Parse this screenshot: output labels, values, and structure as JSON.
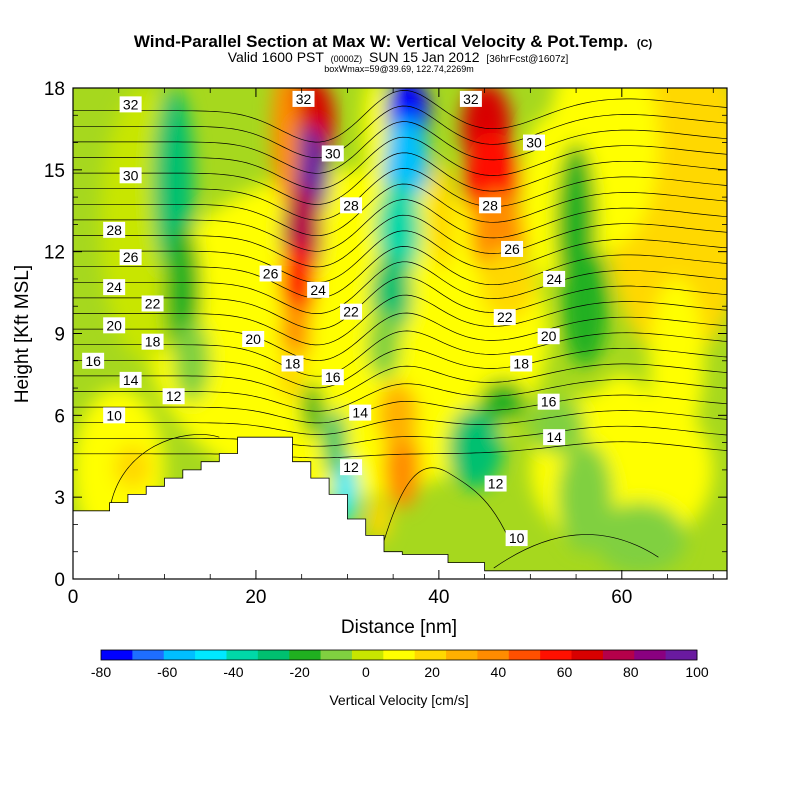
{
  "title": {
    "main": "Wind-Parallel Section at Max W: Vertical Velocity & Pot.Temp.",
    "main_suffix": "(C)",
    "line2_a": "Valid 1600 PST",
    "line2_b": "(0000Z)",
    "line2_c": "SUN 15 Jan 2012",
    "line2_d": "[36hrFcst@1607z]",
    "line3": "boxWmax=59@39.69, 122.74,2269m"
  },
  "colorbar": {
    "label": "Vertical Velocity [cm/s]",
    "ticks": [
      "-80",
      "-60",
      "-40",
      "-20",
      "0",
      "20",
      "40",
      "60",
      "80",
      "100"
    ],
    "tick_values": [
      -80,
      -60,
      -40,
      -20,
      0,
      20,
      40,
      60,
      80,
      100
    ],
    "range": [
      -80,
      100
    ],
    "colors": [
      "#0000ff",
      "#1e6eff",
      "#00bfff",
      "#00e8ff",
      "#00d8a8",
      "#00c070",
      "#20b020",
      "#80d040",
      "#c8e600",
      "#ffff00",
      "#ffd800",
      "#ffb000",
      "#ff8c00",
      "#ff5000",
      "#ff1000",
      "#d80000",
      "#b4004a",
      "#8a0080",
      "#6a1aa0"
    ]
  },
  "chart_data": {
    "type": "heatmap",
    "title": "Wind-Parallel Section at Max W: Vertical Velocity & Pot.Temp.",
    "xlabel": "Distance [nm]",
    "ylabel": "Height [Kft MSL]",
    "xlim": [
      0,
      71.5
    ],
    "ylim": [
      0,
      18
    ],
    "xticks": [
      0,
      20,
      40,
      60
    ],
    "yticks": [
      0,
      3,
      6,
      9,
      12,
      15,
      18
    ],
    "colorbar_label": "Vertical Velocity [cm/s]",
    "terrain_profile": [
      [
        0,
        2.5
      ],
      [
        4,
        2.5
      ],
      [
        4,
        2.8
      ],
      [
        6,
        2.8
      ],
      [
        6,
        3.1
      ],
      [
        8,
        3.1
      ],
      [
        8,
        3.4
      ],
      [
        10,
        3.4
      ],
      [
        10,
        3.7
      ],
      [
        12,
        3.7
      ],
      [
        12,
        4.0
      ],
      [
        14,
        4.0
      ],
      [
        14,
        4.3
      ],
      [
        16,
        4.3
      ],
      [
        16,
        4.6
      ],
      [
        18,
        4.6
      ],
      [
        18,
        5.2
      ],
      [
        24,
        5.2
      ],
      [
        24,
        4.3
      ],
      [
        26,
        4.3
      ],
      [
        26,
        3.7
      ],
      [
        28,
        3.7
      ],
      [
        28,
        3.1
      ],
      [
        30,
        3.1
      ],
      [
        30,
        2.2
      ],
      [
        32,
        2.2
      ],
      [
        32,
        1.6
      ],
      [
        34,
        1.6
      ],
      [
        34,
        1.0
      ],
      [
        36,
        1.0
      ],
      [
        36,
        0.9
      ],
      [
        41,
        0.9
      ],
      [
        41,
        0.6
      ],
      [
        45,
        0.6
      ],
      [
        45,
        0.3
      ],
      [
        71.5,
        0.3
      ]
    ],
    "vertical_velocity_features": [
      {
        "kind": "updraft",
        "x_center": 25.0,
        "y_center": 13.5,
        "max_cm_s": 100
      },
      {
        "kind": "downdraft",
        "x_center": 36.5,
        "y_center": 16.0,
        "min_cm_s": -80
      },
      {
        "kind": "updraft",
        "x_center": 45.5,
        "y_center": 15.0,
        "max_cm_s": 70
      },
      {
        "kind": "updraft",
        "x_center": 36.0,
        "y_center": 4.0,
        "max_cm_s": 40
      },
      {
        "kind": "downdraft",
        "x_center": 30.0,
        "y_center": 3.5,
        "min_cm_s": -40
      },
      {
        "kind": "downdraft",
        "x_center": 12.0,
        "y_center": 12.0,
        "min_cm_s": -25
      },
      {
        "kind": "updraft",
        "x_center": 68.0,
        "y_center": 15.0,
        "max_cm_s": 20
      }
    ],
    "theta_labels": [
      {
        "text": "32",
        "x": 6.3,
        "y": 17.4
      },
      {
        "text": "30",
        "x": 6.3,
        "y": 14.8
      },
      {
        "text": "28",
        "x": 4.5,
        "y": 12.8
      },
      {
        "text": "26",
        "x": 6.3,
        "y": 11.8
      },
      {
        "text": "24",
        "x": 4.5,
        "y": 10.7
      },
      {
        "text": "22",
        "x": 8.7,
        "y": 10.1
      },
      {
        "text": "20",
        "x": 4.5,
        "y": 9.3
      },
      {
        "text": "18",
        "x": 8.7,
        "y": 8.7
      },
      {
        "text": "16",
        "x": 2.2,
        "y": 8.0
      },
      {
        "text": "14",
        "x": 6.3,
        "y": 7.3
      },
      {
        "text": "12",
        "x": 11.0,
        "y": 6.7
      },
      {
        "text": "10",
        "x": 4.5,
        "y": 6.0
      },
      {
        "text": "32",
        "x": 25.2,
        "y": 17.6
      },
      {
        "text": "30",
        "x": 28.4,
        "y": 15.6
      },
      {
        "text": "28",
        "x": 30.4,
        "y": 13.7
      },
      {
        "text": "26",
        "x": 21.6,
        "y": 11.2
      },
      {
        "text": "24",
        "x": 26.8,
        "y": 10.6
      },
      {
        "text": "22",
        "x": 30.4,
        "y": 9.8
      },
      {
        "text": "20",
        "x": 19.7,
        "y": 8.8
      },
      {
        "text": "18",
        "x": 24.0,
        "y": 7.9
      },
      {
        "text": "16",
        "x": 28.4,
        "y": 7.4
      },
      {
        "text": "14",
        "x": 31.4,
        "y": 6.1
      },
      {
        "text": "12",
        "x": 30.4,
        "y": 4.1
      },
      {
        "text": "32",
        "x": 43.5,
        "y": 17.6
      },
      {
        "text": "30",
        "x": 50.4,
        "y": 16.0
      },
      {
        "text": "28",
        "x": 45.6,
        "y": 13.7
      },
      {
        "text": "26",
        "x": 48.0,
        "y": 12.1
      },
      {
        "text": "24",
        "x": 52.6,
        "y": 11.0
      },
      {
        "text": "22",
        "x": 47.2,
        "y": 9.6
      },
      {
        "text": "20",
        "x": 52.0,
        "y": 8.9
      },
      {
        "text": "18",
        "x": 49.0,
        "y": 7.9
      },
      {
        "text": "16",
        "x": 52.0,
        "y": 6.5
      },
      {
        "text": "14",
        "x": 52.6,
        "y": 5.2
      },
      {
        "text": "12",
        "x": 46.2,
        "y": 3.5
      },
      {
        "text": "10",
        "x": 48.5,
        "y": 1.5
      }
    ]
  }
}
